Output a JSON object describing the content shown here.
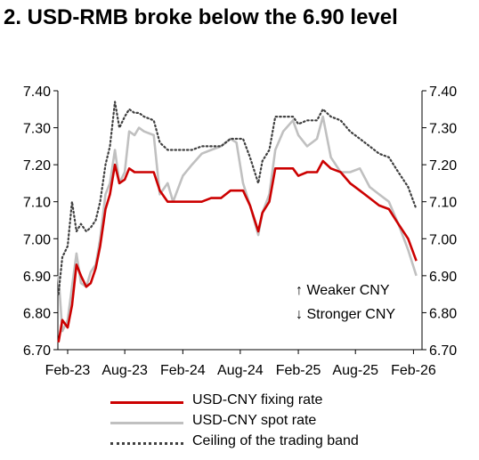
{
  "chart_data": {
    "type": "line",
    "title": "2. USD-RMB broke below the 6.90 level",
    "x_ticks": [
      "Feb-23",
      "Aug-23",
      "Feb-24",
      "Aug-24",
      "Feb-25",
      "Aug-25",
      "Feb-26"
    ],
    "y_ticks_left": [
      "7.40",
      "7.30",
      "7.20",
      "7.10",
      "7.00",
      "6.90",
      "6.80",
      "6.70"
    ],
    "y_ticks_right": [
      "7.40",
      "7.30",
      "7.20",
      "7.10",
      "7.00",
      "6.90",
      "6.80",
      "6.70"
    ],
    "ylim": [
      6.7,
      7.4
    ],
    "xlim": [
      "2023-01-01",
      "2026-02-28"
    ],
    "annotations": [
      "↑ Weaker CNY",
      "↓ Stronger CNY"
    ],
    "colors": {
      "fixing": "#cc0000",
      "spot": "#c0c0c0",
      "ceiling": "#404040"
    },
    "series": [
      {
        "name": "USD-CNY fixing rate",
        "style": "solid",
        "points": [
          [
            "2023-01-03",
            6.72
          ],
          [
            "2023-01-15",
            6.78
          ],
          [
            "2023-02-01",
            6.76
          ],
          [
            "2023-02-15",
            6.82
          ],
          [
            "2023-03-01",
            6.93
          ],
          [
            "2023-03-15",
            6.9
          ],
          [
            "2023-04-01",
            6.87
          ],
          [
            "2023-04-15",
            6.88
          ],
          [
            "2023-05-01",
            6.92
          ],
          [
            "2023-05-15",
            6.98
          ],
          [
            "2023-06-01",
            7.08
          ],
          [
            "2023-06-15",
            7.12
          ],
          [
            "2023-07-01",
            7.2
          ],
          [
            "2023-07-15",
            7.15
          ],
          [
            "2023-08-01",
            7.16
          ],
          [
            "2023-08-15",
            7.19
          ],
          [
            "2023-09-01",
            7.18
          ],
          [
            "2023-09-15",
            7.18
          ],
          [
            "2023-10-01",
            7.18
          ],
          [
            "2023-11-01",
            7.18
          ],
          [
            "2023-11-20",
            7.13
          ],
          [
            "2023-12-15",
            7.1
          ],
          [
            "2024-01-01",
            7.1
          ],
          [
            "2024-02-01",
            7.1
          ],
          [
            "2024-03-01",
            7.1
          ],
          [
            "2024-04-01",
            7.1
          ],
          [
            "2024-05-01",
            7.11
          ],
          [
            "2024-06-01",
            7.11
          ],
          [
            "2024-07-01",
            7.13
          ],
          [
            "2024-07-20",
            7.13
          ],
          [
            "2024-08-10",
            7.13
          ],
          [
            "2024-09-01",
            7.09
          ],
          [
            "2024-09-27",
            7.02
          ],
          [
            "2024-10-10",
            7.07
          ],
          [
            "2024-11-01",
            7.1
          ],
          [
            "2024-11-20",
            7.19
          ],
          [
            "2024-12-15",
            7.19
          ],
          [
            "2025-01-15",
            7.19
          ],
          [
            "2025-02-01",
            7.17
          ],
          [
            "2025-03-01",
            7.18
          ],
          [
            "2025-04-01",
            7.18
          ],
          [
            "2025-04-20",
            7.21
          ],
          [
            "2025-05-15",
            7.19
          ],
          [
            "2025-06-15",
            7.18
          ],
          [
            "2025-07-15",
            7.15
          ],
          [
            "2025-08-15",
            7.13
          ],
          [
            "2025-09-15",
            7.11
          ],
          [
            "2025-10-15",
            7.09
          ],
          [
            "2025-11-15",
            7.08
          ],
          [
            "2025-12-15",
            7.04
          ],
          [
            "2026-01-15",
            7.0
          ],
          [
            "2026-02-10",
            6.94
          ]
        ]
      },
      {
        "name": "USD-CNY spot rate",
        "style": "solid",
        "points": [
          [
            "2023-01-03",
            6.9
          ],
          [
            "2023-01-15",
            6.75
          ],
          [
            "2023-02-01",
            6.78
          ],
          [
            "2023-02-15",
            6.87
          ],
          [
            "2023-03-01",
            6.96
          ],
          [
            "2023-03-15",
            6.88
          ],
          [
            "2023-04-01",
            6.87
          ],
          [
            "2023-04-15",
            6.91
          ],
          [
            "2023-05-01",
            6.93
          ],
          [
            "2023-05-15",
            7.0
          ],
          [
            "2023-06-01",
            7.12
          ],
          [
            "2023-06-15",
            7.15
          ],
          [
            "2023-07-01",
            7.24
          ],
          [
            "2023-07-15",
            7.15
          ],
          [
            "2023-08-01",
            7.18
          ],
          [
            "2023-08-15",
            7.29
          ],
          [
            "2023-09-01",
            7.28
          ],
          [
            "2023-09-15",
            7.3
          ],
          [
            "2023-10-01",
            7.29
          ],
          [
            "2023-11-01",
            7.28
          ],
          [
            "2023-11-20",
            7.12
          ],
          [
            "2023-12-15",
            7.15
          ],
          [
            "2024-01-01",
            7.1
          ],
          [
            "2024-02-01",
            7.17
          ],
          [
            "2024-03-01",
            7.2
          ],
          [
            "2024-04-01",
            7.23
          ],
          [
            "2024-05-01",
            7.24
          ],
          [
            "2024-06-01",
            7.25
          ],
          [
            "2024-07-01",
            7.27
          ],
          [
            "2024-07-20",
            7.26
          ],
          [
            "2024-08-10",
            7.15
          ],
          [
            "2024-09-01",
            7.09
          ],
          [
            "2024-09-27",
            7.01
          ],
          [
            "2024-10-10",
            7.07
          ],
          [
            "2024-11-01",
            7.12
          ],
          [
            "2024-11-20",
            7.24
          ],
          [
            "2024-12-15",
            7.29
          ],
          [
            "2025-01-15",
            7.32
          ],
          [
            "2025-02-01",
            7.28
          ],
          [
            "2025-03-01",
            7.25
          ],
          [
            "2025-04-01",
            7.27
          ],
          [
            "2025-04-20",
            7.33
          ],
          [
            "2025-05-15",
            7.22
          ],
          [
            "2025-06-15",
            7.18
          ],
          [
            "2025-07-15",
            7.18
          ],
          [
            "2025-08-15",
            7.19
          ],
          [
            "2025-09-15",
            7.14
          ],
          [
            "2025-10-15",
            7.12
          ],
          [
            "2025-11-15",
            7.1
          ],
          [
            "2025-12-15",
            7.04
          ],
          [
            "2026-01-15",
            6.97
          ],
          [
            "2026-02-10",
            6.9
          ]
        ]
      },
      {
        "name": "Ceiling of the trading band",
        "style": "dotted",
        "points": [
          [
            "2023-01-03",
            6.85
          ],
          [
            "2023-01-15",
            6.95
          ],
          [
            "2023-02-01",
            6.98
          ],
          [
            "2023-02-15",
            7.1
          ],
          [
            "2023-03-01",
            7.02
          ],
          [
            "2023-03-15",
            7.04
          ],
          [
            "2023-04-01",
            7.02
          ],
          [
            "2023-04-15",
            7.03
          ],
          [
            "2023-05-01",
            7.05
          ],
          [
            "2023-05-15",
            7.1
          ],
          [
            "2023-06-01",
            7.2
          ],
          [
            "2023-06-15",
            7.25
          ],
          [
            "2023-07-01",
            7.37
          ],
          [
            "2023-07-15",
            7.3
          ],
          [
            "2023-08-01",
            7.33
          ],
          [
            "2023-08-15",
            7.35
          ],
          [
            "2023-09-01",
            7.34
          ],
          [
            "2023-09-15",
            7.34
          ],
          [
            "2023-10-01",
            7.33
          ],
          [
            "2023-11-01",
            7.32
          ],
          [
            "2023-11-20",
            7.26
          ],
          [
            "2023-12-15",
            7.24
          ],
          [
            "2024-01-01",
            7.24
          ],
          [
            "2024-02-01",
            7.24
          ],
          [
            "2024-03-01",
            7.24
          ],
          [
            "2024-04-01",
            7.25
          ],
          [
            "2024-05-01",
            7.25
          ],
          [
            "2024-06-01",
            7.25
          ],
          [
            "2024-07-01",
            7.27
          ],
          [
            "2024-07-20",
            7.27
          ],
          [
            "2024-08-10",
            7.27
          ],
          [
            "2024-09-01",
            7.22
          ],
          [
            "2024-09-27",
            7.15
          ],
          [
            "2024-10-10",
            7.21
          ],
          [
            "2024-11-01",
            7.24
          ],
          [
            "2024-11-20",
            7.33
          ],
          [
            "2024-12-15",
            7.33
          ],
          [
            "2025-01-15",
            7.33
          ],
          [
            "2025-02-01",
            7.31
          ],
          [
            "2025-03-01",
            7.32
          ],
          [
            "2025-04-01",
            7.32
          ],
          [
            "2025-04-20",
            7.35
          ],
          [
            "2025-05-15",
            7.33
          ],
          [
            "2025-06-15",
            7.32
          ],
          [
            "2025-07-15",
            7.29
          ],
          [
            "2025-08-15",
            7.27
          ],
          [
            "2025-09-15",
            7.25
          ],
          [
            "2025-10-15",
            7.23
          ],
          [
            "2025-11-15",
            7.22
          ],
          [
            "2025-12-15",
            7.18
          ],
          [
            "2026-01-15",
            7.14
          ],
          [
            "2026-02-10",
            7.08
          ]
        ]
      }
    ]
  }
}
